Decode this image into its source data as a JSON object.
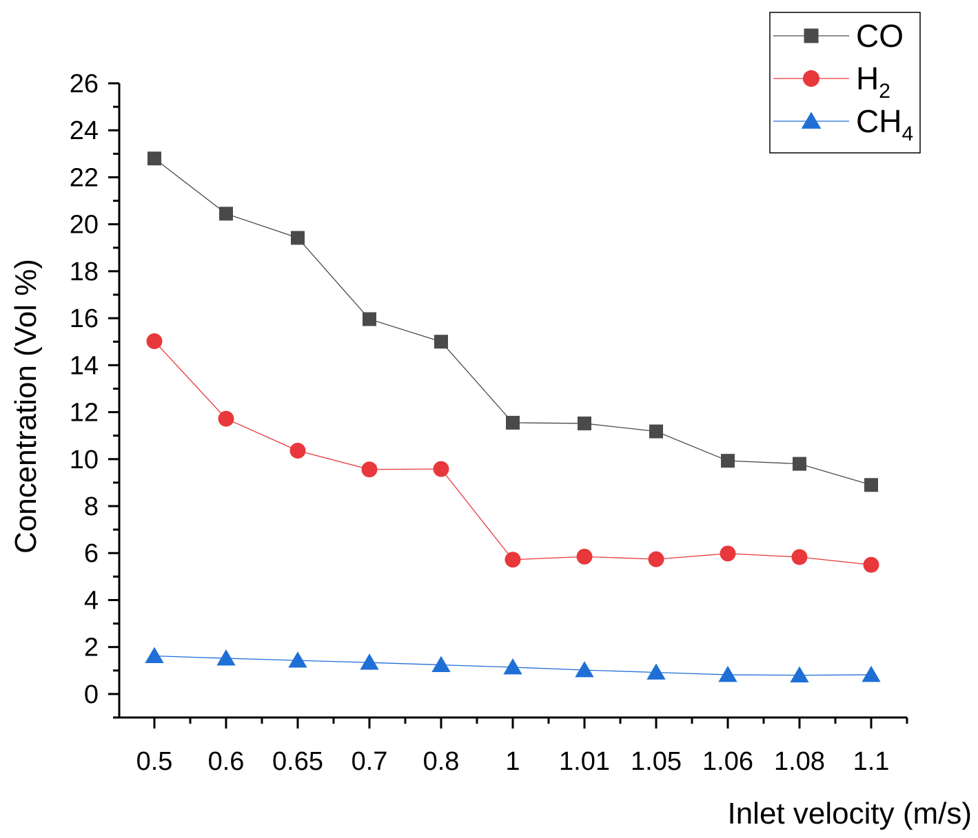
{
  "chart_data": {
    "type": "line",
    "title": "",
    "xlabel": "Inlet velocity (m/s)",
    "ylabel": "Concentration (Vol %)",
    "categories": [
      "0.5",
      "0.6",
      "0.65",
      "0.7",
      "0.8",
      "1",
      "1.01",
      "1.05",
      "1.06",
      "1.08",
      "1.1"
    ],
    "ylim": [
      -1,
      26
    ],
    "yticks": [
      0,
      2,
      4,
      6,
      8,
      10,
      12,
      14,
      16,
      18,
      20,
      22,
      24,
      26
    ],
    "grid": false,
    "legend_position": "top-right",
    "series": [
      {
        "name": "CO",
        "name_base": "CO",
        "name_sub": "",
        "color": "#4a4a4a",
        "marker": "square",
        "values": [
          22.8,
          20.45,
          19.42,
          15.96,
          15.0,
          11.55,
          11.52,
          11.18,
          9.93,
          9.8,
          8.9
        ]
      },
      {
        "name": "H2",
        "name_base": "H",
        "name_sub": "2",
        "color": "#e8383b",
        "marker": "circle",
        "values": [
          15.02,
          11.72,
          10.36,
          9.56,
          9.58,
          5.72,
          5.85,
          5.74,
          5.98,
          5.83,
          5.5
        ]
      },
      {
        "name": "CH4",
        "name_base": "CH",
        "name_sub": "4",
        "color": "#1f6fd6",
        "marker": "triangle",
        "values": [
          1.62,
          1.52,
          1.43,
          1.34,
          1.24,
          1.14,
          1.02,
          0.92,
          0.82,
          0.8,
          0.82
        ]
      }
    ]
  }
}
